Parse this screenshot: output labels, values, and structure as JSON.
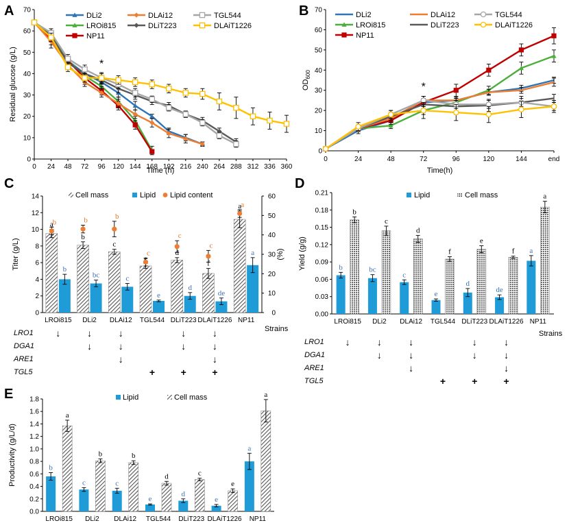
{
  "figure": {
    "panels": {
      "A": "A",
      "B": "B",
      "C": "C",
      "D": "D",
      "E": "E"
    },
    "colors": {
      "lipid": "#1f9bd7",
      "cell": "#555555",
      "lipid_content": "#ed7d31",
      "sig_orange": "#e7782a",
      "sig_blue": "#3d72b8"
    }
  },
  "chart_data": [
    {
      "id": "A",
      "type": "line",
      "title": "",
      "xlabel": "Time (h)",
      "ylabel": "Residual glucose (g/L)",
      "xlim": [
        0,
        360
      ],
      "ylim": [
        0,
        70
      ],
      "x_ticks": [
        0,
        24,
        48,
        72,
        96,
        120,
        144,
        168,
        192,
        216,
        240,
        264,
        288,
        312,
        336,
        360
      ],
      "y_ticks": [
        0,
        10,
        20,
        30,
        40,
        50,
        60,
        70
      ],
      "annotation": {
        "text": "*",
        "x": 96,
        "y": 43
      },
      "series": [
        {
          "name": "DLi2",
          "color": "#2e75b6",
          "marker": "triangle",
          "x": [
            0,
            24,
            48,
            72,
            96,
            120,
            144,
            168,
            192,
            216,
            240
          ],
          "y": [
            64,
            59,
            46,
            40,
            36,
            31,
            25,
            20,
            13,
            10,
            7
          ],
          "err": [
            1,
            2,
            2,
            2,
            2,
            2,
            2,
            1,
            1.5,
            1.5,
            1
          ]
        },
        {
          "name": "LROi815",
          "color": "#4caf3c",
          "marker": "triangle",
          "x": [
            0,
            24,
            48,
            72,
            96,
            120,
            144,
            168
          ],
          "y": [
            64,
            59,
            46,
            39,
            34,
            27,
            18,
            4
          ],
          "err": [
            1,
            2,
            2,
            2,
            2,
            2,
            2,
            2
          ]
        },
        {
          "name": "NP11",
          "color": "#c00000",
          "marker": "square",
          "x": [
            0,
            24,
            48,
            72,
            96,
            120,
            144,
            168
          ],
          "y": [
            64,
            56,
            46,
            38,
            32,
            25,
            16,
            3.5
          ],
          "err": [
            1,
            2.5,
            2,
            3,
            2,
            2,
            2,
            1
          ]
        },
        {
          "name": "DLAi12",
          "color": "#ed7d31",
          "marker": "diamond",
          "x": [
            0,
            24,
            48,
            72,
            96,
            120,
            144,
            168,
            192,
            216,
            240
          ],
          "y": [
            64,
            55,
            44,
            36,
            31,
            26,
            21,
            17,
            12,
            9.5,
            7
          ],
          "err": [
            1,
            3,
            2,
            2,
            2,
            2,
            2,
            2,
            2,
            2,
            1
          ]
        },
        {
          "name": "DLiT223",
          "color": "#595959",
          "marker": "diamond",
          "x": [
            0,
            24,
            48,
            72,
            96,
            120,
            144,
            168,
            192,
            216,
            240,
            264,
            288
          ],
          "y": [
            64,
            58,
            45,
            40,
            37,
            33,
            30,
            27,
            25,
            21,
            18,
            13,
            8
          ],
          "err": [
            1,
            2,
            2,
            2,
            2,
            2,
            2,
            1.5,
            1.5,
            1.5,
            1.5,
            1.5,
            1.5
          ]
        },
        {
          "name": "TGL544",
          "color": "#a6a6a6",
          "marker": "square-open",
          "x": [
            0,
            24,
            48,
            72,
            96,
            120,
            144,
            168,
            192,
            216,
            240,
            264,
            288
          ],
          "y": [
            64,
            59,
            47,
            42,
            38,
            35,
            31,
            28,
            24,
            21,
            17,
            11,
            7
          ],
          "err": [
            1,
            2,
            2,
            2,
            2,
            2,
            2,
            1.5,
            1.5,
            1.5,
            1.5,
            1.5,
            1.5
          ]
        },
        {
          "name": "DLAiT1226",
          "color": "#ffc000",
          "marker": "square-open",
          "x": [
            0,
            24,
            48,
            72,
            96,
            120,
            144,
            168,
            192,
            216,
            240,
            264,
            288,
            312,
            336,
            360
          ],
          "y": [
            64,
            57,
            43,
            38,
            38,
            37,
            36,
            35,
            33,
            31,
            30.5,
            27,
            24,
            20,
            18,
            16.5
          ],
          "err": [
            1,
            2,
            2,
            2,
            2.5,
            2,
            2,
            2,
            2,
            2,
            2.5,
            4,
            5,
            4,
            4,
            4
          ]
        }
      ]
    },
    {
      "id": "B",
      "type": "line",
      "title": "",
      "xlabel": "Time(h)",
      "ylabel": "OD",
      "ylabel_sub": "600",
      "categories": [
        "0",
        "24",
        "48",
        "72",
        "96",
        "120",
        "144",
        "end"
      ],
      "ylim": [
        0,
        70
      ],
      "y_ticks": [
        0,
        10,
        20,
        30,
        40,
        50,
        60,
        70
      ],
      "annotation": {
        "text": "*",
        "category": "72",
        "y": 30
      },
      "series": [
        {
          "name": "DLi2",
          "color": "#2e75b6",
          "marker": "none",
          "values": [
            1,
            10,
            15,
            24,
            25,
            29,
            31,
            35
          ],
          "err": [
            0.5,
            1.5,
            2,
            2,
            1.5,
            1.5,
            1.5,
            1.5
          ]
        },
        {
          "name": "LROi815",
          "color": "#4caf3c",
          "marker": "triangle",
          "values": [
            1,
            11,
            12.5,
            20,
            24,
            30,
            41,
            47
          ],
          "err": [
            0.5,
            1.5,
            1.5,
            2,
            2,
            2,
            3,
            3
          ]
        },
        {
          "name": "NP11",
          "color": "#c00000",
          "marker": "square",
          "values": [
            1,
            11,
            15,
            24,
            30,
            40,
            50,
            57
          ],
          "err": [
            0.5,
            1.5,
            2,
            3,
            3,
            3,
            3,
            4
          ]
        },
        {
          "name": "DLAi12",
          "color": "#ed7d31",
          "marker": "none",
          "values": [
            1,
            11,
            16,
            25,
            25,
            29,
            30,
            34
          ],
          "err": [
            0.5,
            1.5,
            2,
            2,
            2,
            1.5,
            1.5,
            2
          ]
        },
        {
          "name": "DLiT223",
          "color": "#595959",
          "marker": "none",
          "values": [
            1,
            11,
            17,
            23,
            22,
            22.5,
            24,
            26
          ],
          "err": [
            0.5,
            1.5,
            2,
            4,
            4,
            3,
            3,
            2
          ]
        },
        {
          "name": "TGL544",
          "color": "#a6a6a6",
          "marker": "circle-open",
          "values": [
            1,
            11,
            18,
            25,
            23,
            23,
            24,
            22
          ],
          "err": [
            0.5,
            1.5,
            2,
            2,
            2,
            2,
            2,
            2
          ]
        },
        {
          "name": "DLAiT1226",
          "color": "#ffc000",
          "marker": "circle-open",
          "values": [
            1,
            12,
            18,
            20,
            19,
            18,
            20.5,
            22
          ],
          "err": [
            0.5,
            2,
            2,
            4,
            4,
            4,
            4,
            3
          ]
        }
      ]
    },
    {
      "id": "C",
      "type": "bar",
      "title": "",
      "ylabel": "Titer (g/L)",
      "ylabel_right": "(%)",
      "xlabel": "Strains",
      "categories": [
        "LROi815",
        "DLi2",
        "DLAi12",
        "TGL544",
        "DLiT223",
        "DLAiT1226",
        "NP11"
      ],
      "ylim": [
        0,
        14
      ],
      "y_ticks": [
        0,
        2,
        4,
        6,
        8,
        10,
        12,
        14
      ],
      "ylim_right": [
        0,
        60
      ],
      "y_ticks_right": [
        0,
        10,
        20,
        30,
        40,
        50,
        60
      ],
      "legend": [
        "Cell mass",
        "Lipid",
        "Lipid content"
      ],
      "series": [
        {
          "name": "Cell mass",
          "style": "hatched",
          "values": [
            9.5,
            8.1,
            7.3,
            5.6,
            6.3,
            4.7,
            11.2
          ],
          "err": [
            0.5,
            0.4,
            0.3,
            0.3,
            0.3,
            0.6,
            1.0
          ],
          "sig": [
            "a",
            "b",
            "c",
            "e",
            "d",
            "f",
            "a"
          ]
        },
        {
          "name": "Lipid",
          "style": "solid",
          "values": [
            4.0,
            3.5,
            3.1,
            1.4,
            2.0,
            1.35,
            5.7
          ],
          "err": [
            0.6,
            0.4,
            0.4,
            0.1,
            0.4,
            0.4,
            0.9
          ],
          "sig": [
            "b",
            "bc",
            "c",
            "e",
            "d",
            "de",
            "a"
          ]
        },
        {
          "name": "Lipid content",
          "style": "point",
          "axis": "right",
          "values": [
            42,
            43,
            43,
            26,
            34,
            29,
            51
          ],
          "err": [
            2,
            2,
            4,
            2,
            3,
            3,
            2
          ],
          "sig": [
            "b",
            "b",
            "b",
            "c",
            "c",
            "c",
            "a"
          ]
        }
      ],
      "genotype": {
        "rows": [
          "LRO1",
          "DGA1",
          "ARE1",
          "TGL5"
        ],
        "marks": [
          [
            "↓",
            "↓",
            "↓",
            "",
            "↓",
            "↓",
            ""
          ],
          [
            "",
            "↓",
            "↓",
            "",
            "↓",
            "↓",
            ""
          ],
          [
            "",
            "",
            "↓",
            "",
            "",
            "↓",
            ""
          ],
          [
            "",
            "",
            "",
            "+",
            "+",
            "+",
            ""
          ]
        ]
      }
    },
    {
      "id": "D",
      "type": "bar",
      "title": "",
      "ylabel": "Yield (g/g)",
      "xlabel": "Strains",
      "categories": [
        "LROi815",
        "DLi2",
        "DLAi12",
        "TGL544",
        "DLiT223",
        "DLAiT1226",
        "NP11"
      ],
      "ylim": [
        0,
        0.21
      ],
      "y_ticks": [
        "0.00",
        "0.03",
        "0.06",
        "0.09",
        "0.12",
        "0.15",
        "0.18",
        "0.21"
      ],
      "legend": [
        "Lipid",
        "Cell mass"
      ],
      "series": [
        {
          "name": "Lipid",
          "style": "solid",
          "values": [
            0.067,
            0.062,
            0.055,
            0.024,
            0.037,
            0.029,
            0.092
          ],
          "err": [
            0.005,
            0.006,
            0.004,
            0.002,
            0.007,
            0.004,
            0.009
          ],
          "sig": [
            "b",
            "bc",
            "c",
            "e",
            "d",
            "de",
            "a"
          ]
        },
        {
          "name": "Cell mass",
          "style": "hatched",
          "values": [
            0.163,
            0.144,
            0.13,
            0.095,
            0.112,
            0.098,
            0.185
          ],
          "err": [
            0.005,
            0.008,
            0.006,
            0.004,
            0.006,
            0.002,
            0.01
          ],
          "sig": [
            "b",
            "c",
            "d",
            "f",
            "e",
            "f",
            "a"
          ]
        }
      ],
      "genotype": {
        "rows": [
          "LRO1",
          "DGA1",
          "ARE1",
          "TGL5"
        ],
        "marks": [
          [
            "↓",
            "↓",
            "↓",
            "",
            "↓",
            "↓",
            ""
          ],
          [
            "",
            "↓",
            "↓",
            "",
            "↓",
            "↓",
            ""
          ],
          [
            "",
            "",
            "↓",
            "",
            "",
            "↓",
            ""
          ],
          [
            "",
            "",
            "",
            "+",
            "+",
            "+",
            ""
          ]
        ]
      }
    },
    {
      "id": "E",
      "type": "bar",
      "title": "",
      "ylabel": "Productivity (g/L/d)",
      "categories": [
        "LROi815",
        "DLi2",
        "DLAi12",
        "TGL544",
        "DLiT223",
        "DLAiT1226",
        "NP11"
      ],
      "ylim": [
        0,
        1.8
      ],
      "y_ticks": [
        "0.0",
        "0.2",
        "0.4",
        "0.6",
        "0.8",
        "1.0",
        "1.2",
        "1.4",
        "1.6",
        "1.8"
      ],
      "legend": [
        "Lipid",
        "Cell mass"
      ],
      "series": [
        {
          "name": "Lipid",
          "style": "solid",
          "values": [
            0.56,
            0.35,
            0.33,
            0.11,
            0.17,
            0.09,
            0.8
          ],
          "err": [
            0.06,
            0.03,
            0.04,
            0.01,
            0.03,
            0.02,
            0.13
          ],
          "sig": [
            "b",
            "c",
            "c",
            "e",
            "d",
            "e",
            "a"
          ]
        },
        {
          "name": "Cell mass",
          "style": "hatched",
          "values": [
            1.37,
            0.81,
            0.78,
            0.45,
            0.51,
            0.33,
            1.61
          ],
          "err": [
            0.09,
            0.03,
            0.03,
            0.03,
            0.02,
            0.03,
            0.18
          ],
          "sig": [
            "a",
            "b",
            "b",
            "d",
            "c",
            "e",
            "a"
          ]
        }
      ]
    }
  ]
}
